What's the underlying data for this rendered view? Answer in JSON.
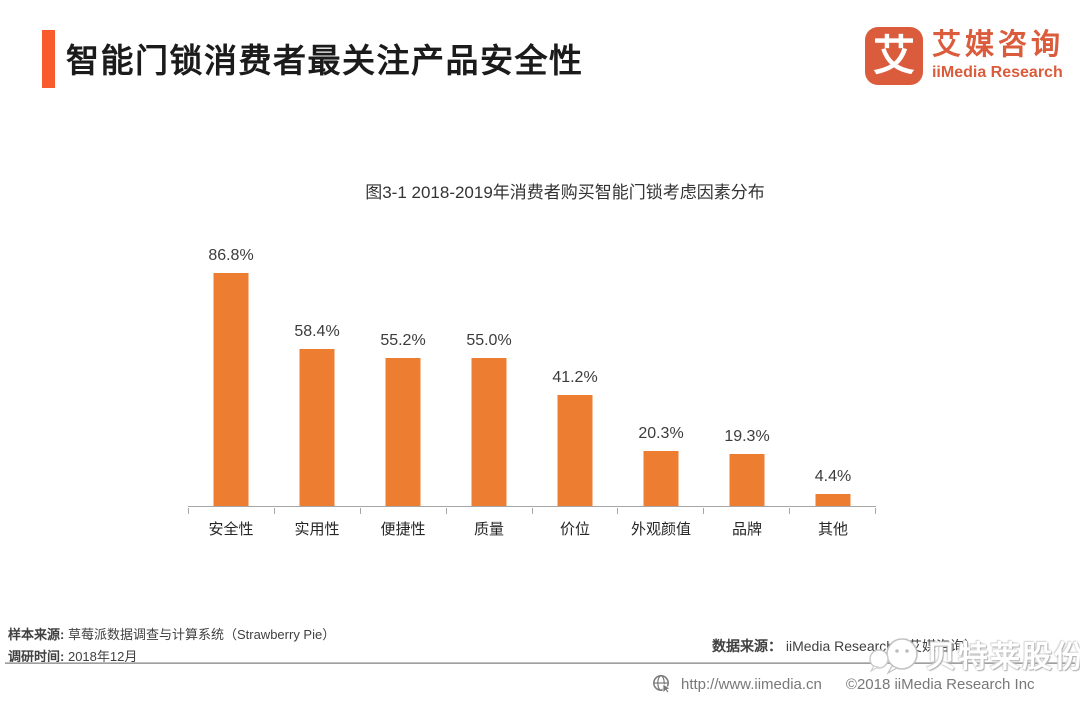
{
  "header": {
    "title": "智能门锁消费者最关注产品安全性",
    "logo": {
      "glyph": "艾",
      "name_cn": "艾媒咨询",
      "name_en": "iiMedia Research"
    }
  },
  "chart_data": {
    "type": "bar",
    "title": "图3-1 2018-2019年消费者购买智能门锁考虑因素分布",
    "categories": [
      "安全性",
      "实用性",
      "便捷性",
      "质量",
      "价位",
      "外观颜值",
      "品牌",
      "其他"
    ],
    "values": [
      86.8,
      58.4,
      55.2,
      55.0,
      41.2,
      20.3,
      19.3,
      4.4
    ],
    "value_labels": [
      "86.8%",
      "58.4%",
      "55.2%",
      "55.0%",
      "41.2%",
      "20.3%",
      "19.3%",
      "4.4%"
    ],
    "value_suffix": "%",
    "xlabel": "",
    "ylabel": "",
    "ylim": [
      0,
      100
    ],
    "grid": false,
    "legend": false,
    "bar_color": "#ED7D31"
  },
  "footnotes": {
    "sample_source_label": "样本来源:",
    "sample_source": "草莓派数据调查与计算系统（Strawberry Pie）",
    "survey_time_label": "调研时间:",
    "survey_time": "2018年12月",
    "data_source_label": "数据来源：",
    "data_source": "iiMedia Research（艾媒咨询）"
  },
  "watermark": {
    "text": "贝特莱股份",
    "icon": "wechat-chat-bubbles-icon"
  },
  "footer": {
    "url": "http://www.iimedia.cn",
    "copyright": "©2018  iiMedia Research Inc"
  },
  "colors": {
    "accent_orange": "#FA5B2C",
    "logo_orange": "#DA5C3C",
    "bar_orange": "#ED7D31",
    "axis_gray": "#A6A6A6",
    "footer_gray": "#787878"
  }
}
